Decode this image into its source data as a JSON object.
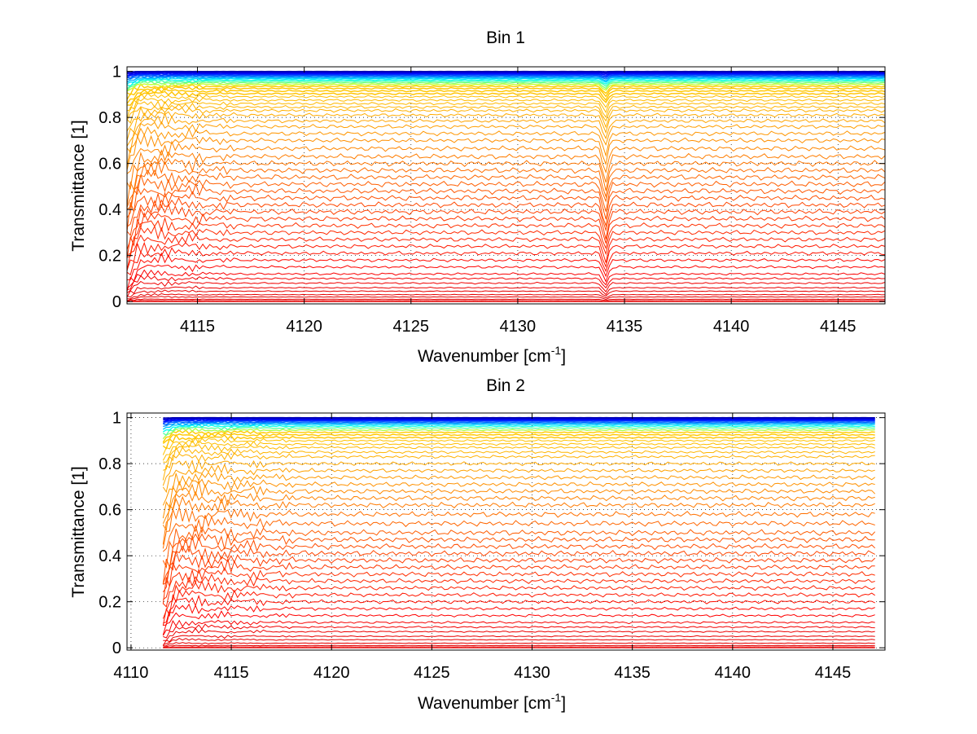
{
  "chart_data": [
    {
      "type": "line",
      "title": "Bin 1",
      "xlabel": "Wavenumber [cm",
      "xlabel_sup": "-1",
      "xlabel_end": "]",
      "ylabel": "Transmittance [1]",
      "xlim": [
        4111.7,
        4147.2
      ],
      "ylim": [
        -0.01,
        1.02
      ],
      "xticks": [
        4115,
        4120,
        4125,
        4130,
        4135,
        4140,
        4145
      ],
      "yticks": [
        0,
        0.2,
        0.4,
        0.6,
        0.8,
        1
      ],
      "x_start": 4111.7,
      "x_end": 4147.2,
      "grid": true,
      "grid_style": "dotted",
      "colormap": "jet",
      "absorption_line": 4134.1,
      "series_baselines": [
        1.0,
        0.997,
        0.994,
        0.99,
        0.986,
        0.982,
        0.978,
        0.973,
        0.968,
        0.962,
        0.956,
        0.95,
        0.943,
        0.935,
        0.926,
        0.915,
        0.903,
        0.89,
        0.875,
        0.86,
        0.845,
        0.83,
        0.81,
        0.785,
        0.76,
        0.73,
        0.7,
        0.665,
        0.63,
        0.6,
        0.57,
        0.54,
        0.51,
        0.48,
        0.45,
        0.42,
        0.39,
        0.36,
        0.33,
        0.3,
        0.27,
        0.24,
        0.21,
        0.18,
        0.15,
        0.12,
        0.1,
        0.08,
        0.06,
        0.045,
        0.03,
        0.02,
        0.01,
        0.004,
        0.0
      ]
    },
    {
      "type": "line",
      "title": "Bin 2",
      "xlabel": "Wavenumber [cm",
      "xlabel_sup": "-1",
      "xlabel_end": "]",
      "ylabel": "Transmittance [1]",
      "xlim": [
        4109.8,
        4147.6
      ],
      "ylim": [
        -0.01,
        1.02
      ],
      "xticks": [
        4110,
        4115,
        4120,
        4125,
        4130,
        4135,
        4140,
        4145
      ],
      "yticks": [
        0,
        0.2,
        0.4,
        0.6,
        0.8,
        1
      ],
      "x_start": 4111.6,
      "x_end": 4147.1,
      "grid": true,
      "grid_style": "dotted",
      "colormap": "jet",
      "series_baselines": [
        1.0,
        0.997,
        0.994,
        0.99,
        0.986,
        0.981,
        0.976,
        0.97,
        0.963,
        0.955,
        0.946,
        0.936,
        0.925,
        0.913,
        0.9,
        0.885,
        0.87,
        0.85,
        0.83,
        0.8,
        0.77,
        0.74,
        0.71,
        0.68,
        0.65,
        0.62,
        0.58,
        0.54,
        0.5,
        0.47,
        0.44,
        0.41,
        0.38,
        0.35,
        0.32,
        0.29,
        0.26,
        0.23,
        0.2,
        0.17,
        0.14,
        0.11,
        0.09,
        0.07,
        0.05,
        0.035,
        0.02,
        0.01,
        0.004,
        0.0
      ]
    }
  ]
}
